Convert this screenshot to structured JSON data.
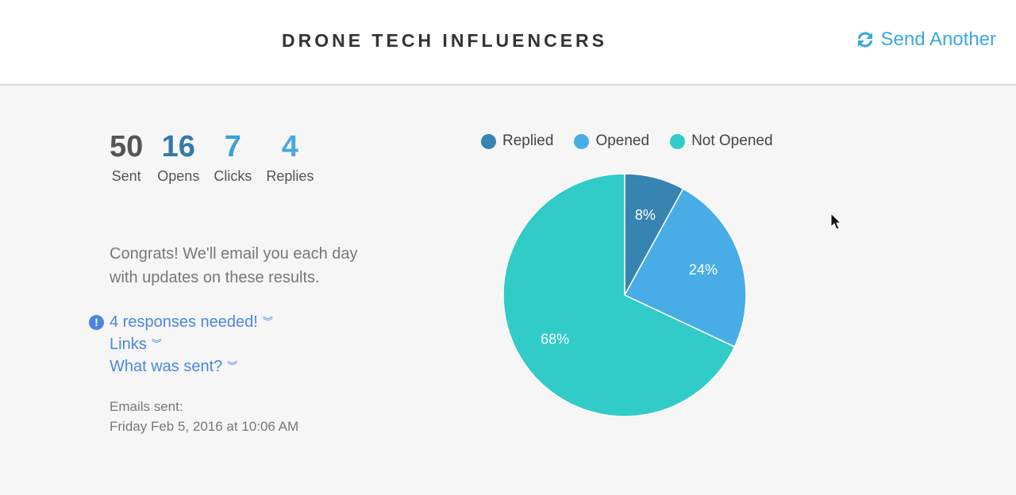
{
  "header": {
    "title": "DRONE TECH INFLUENCERS",
    "send_another_label": "Send Another",
    "send_icon": "refresh-icon"
  },
  "stats": [
    {
      "value": "50",
      "label": "Sent"
    },
    {
      "value": "16",
      "label": "Opens"
    },
    {
      "value": "7",
      "label": "Clicks"
    },
    {
      "value": "4",
      "label": "Replies"
    }
  ],
  "message": {
    "line1": "Congrats! We'll email you each day",
    "line2": "with updates on these results."
  },
  "links": {
    "responses_needed": "4 responses needed!",
    "links_label": "Links",
    "what_was_sent": "What was sent?"
  },
  "emails_sent": {
    "label": "Emails sent:",
    "date": "Friday Feb 5, 2016 at 10:06 AM"
  },
  "colors": {
    "replied": "#3783b1",
    "opened": "#48ade6",
    "not_opened": "#31cbc8",
    "accent": "#3aa8e0"
  },
  "chart_data": {
    "type": "pie",
    "categories": [
      "Replied",
      "Opened",
      "Not Opened"
    ],
    "values": [
      8,
      24,
      68
    ],
    "labels": [
      "8%",
      "24%",
      "68%"
    ],
    "legend": "top"
  }
}
